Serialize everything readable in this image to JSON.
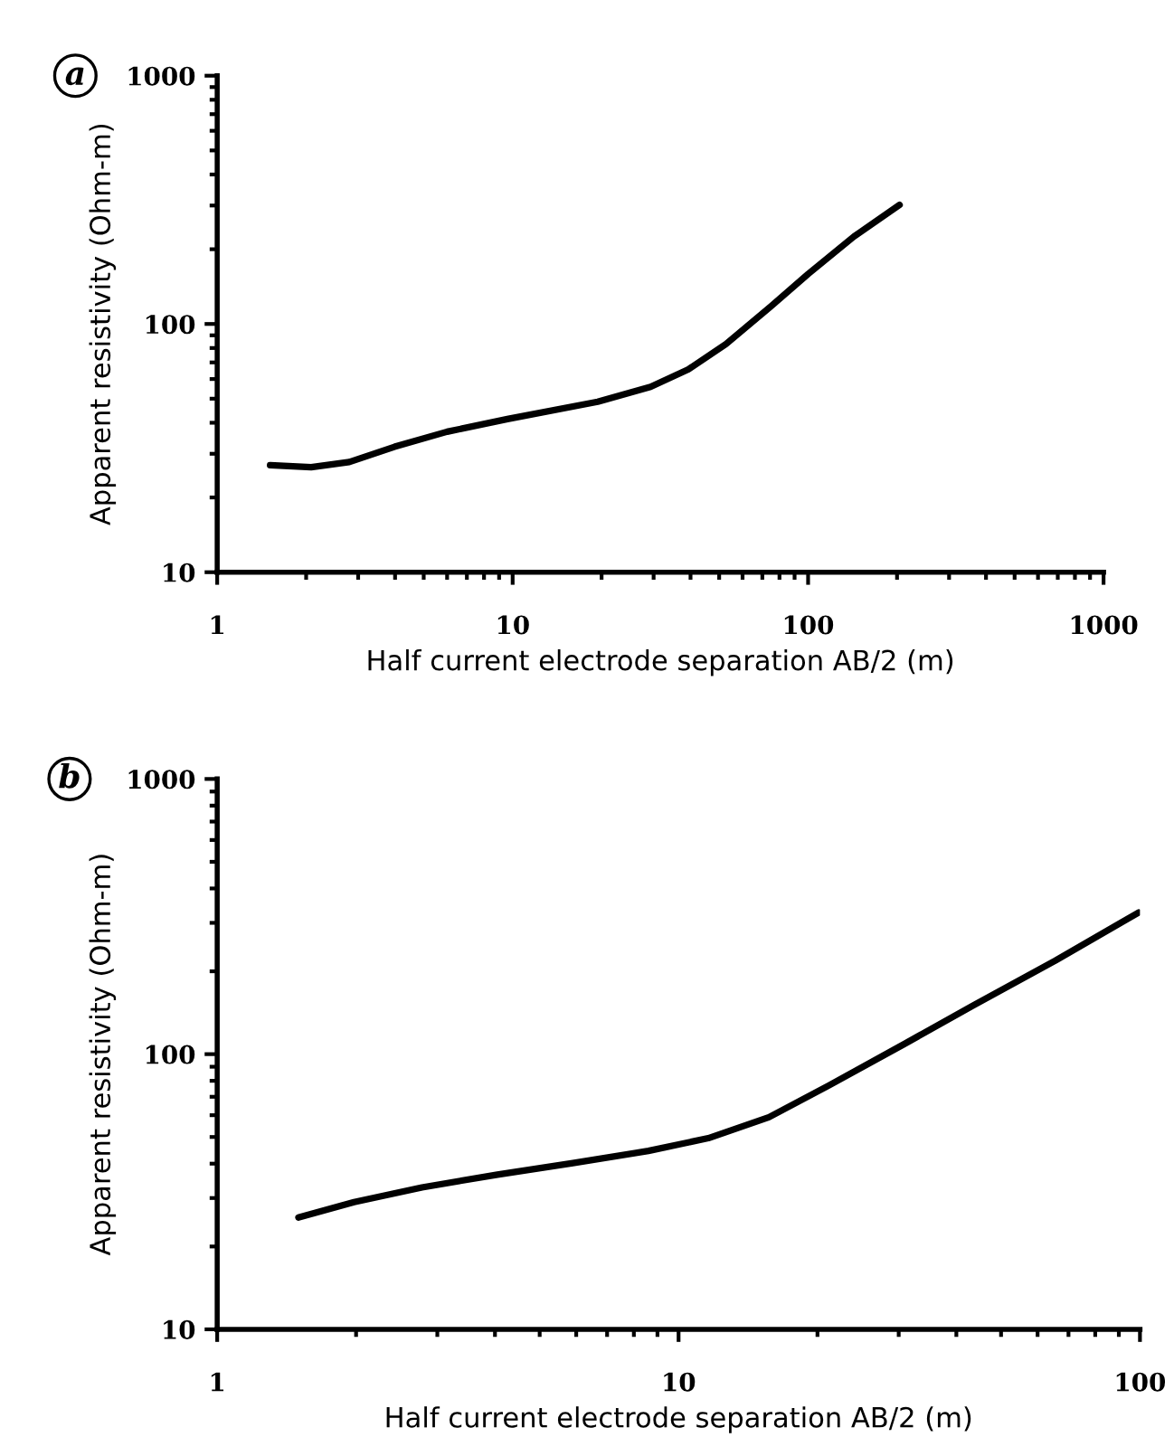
{
  "chart_data": [
    {
      "type": "line",
      "xlabel": "Half current electrode separation AB/2 (m)",
      "ylabel": "Apparent resistivity (Ohm-m)",
      "annotations": [
        "a"
      ],
      "log": "xy",
      "xlim": [
        1,
        1000
      ],
      "ylim": [
        10,
        1000
      ],
      "xticks": [
        1,
        10,
        100,
        1000
      ],
      "yticks": [
        10,
        100,
        1000
      ],
      "grid": false,
      "series": [
        {
          "color": "#000000",
          "x": [
            1.51,
            2.08,
            2.8,
            3.98,
            6,
            9.6,
            19.4,
            29.3,
            39.3,
            52.7,
            75,
            100,
            143,
            204
          ],
          "values": [
            27,
            26.5,
            27.8,
            32,
            36.8,
            41.4,
            48.6,
            55.8,
            65.6,
            83,
            118,
            159,
            225,
            302
          ]
        }
      ]
    },
    {
      "type": "line",
      "xlabel": "Half current electrode separation AB/2 (m)",
      "ylabel": "Apparent resistivity (Ohm-m)",
      "annotations": [
        "b"
      ],
      "log": "xy",
      "xlim": [
        1,
        100
      ],
      "ylim": [
        10,
        1000
      ],
      "xticks": [
        1,
        10,
        100
      ],
      "yticks": [
        10,
        100,
        1000
      ],
      "grid": false,
      "series": [
        {
          "color": "#000000",
          "x": [
            1.5,
            1.98,
            2.78,
            4.05,
            5.9,
            8.6,
            11.6,
            15.7,
            21.2,
            30.9,
            43.4,
            65.6,
            99.3
          ],
          "values": [
            25.5,
            29,
            32.8,
            36.5,
            40.2,
            44.5,
            49.5,
            59,
            77,
            109,
            150,
            219,
            327
          ]
        }
      ]
    }
  ]
}
